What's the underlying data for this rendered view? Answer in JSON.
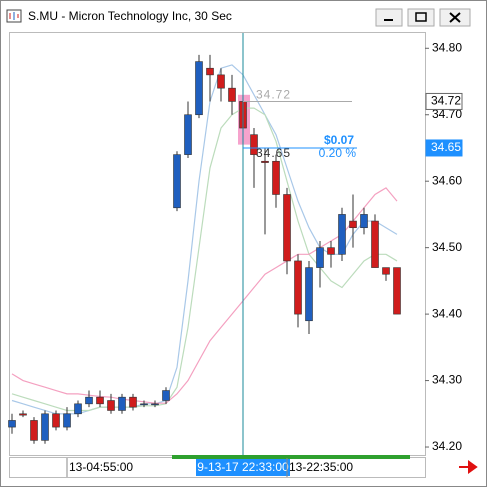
{
  "window_title": "S.MU - Micron Technology Inc, 30 Sec",
  "chart_data": {
    "type": "candlestick",
    "categories": [
      null,
      null,
      null,
      null,
      null,
      "13-04:55:00",
      null,
      null,
      null,
      null,
      null,
      null,
      null,
      null,
      null,
      null,
      null,
      null,
      null,
      null,
      null,
      "9-13-17 22:33:00",
      null,
      null,
      null,
      "13-22:35:00",
      null,
      null,
      null,
      null,
      null,
      null,
      null,
      null,
      null,
      null
    ],
    "open": [
      34.23,
      34.25,
      34.24,
      34.21,
      34.25,
      34.23,
      34.25,
      34.265,
      34.275,
      34.27,
      34.255,
      34.275,
      34.265,
      34.265,
      34.27,
      34.56,
      34.64,
      34.7,
      34.77,
      34.76,
      34.74,
      34.72,
      34.67,
      34.63,
      34.63,
      34.58,
      34.48,
      34.39,
      34.47,
      34.5,
      34.49,
      34.54,
      34.53,
      34.54,
      34.47,
      34.47
    ],
    "high": [
      34.25,
      34.255,
      34.245,
      34.255,
      34.255,
      34.26,
      34.27,
      34.285,
      34.285,
      34.28,
      34.28,
      34.28,
      34.27,
      34.27,
      34.29,
      34.645,
      34.72,
      34.79,
      34.79,
      34.77,
      34.76,
      34.73,
      34.68,
      34.65,
      34.64,
      34.59,
      34.49,
      34.48,
      34.51,
      34.51,
      34.56,
      34.58,
      34.56,
      34.55,
      34.47,
      34.47
    ],
    "low": [
      34.22,
      34.245,
      34.205,
      34.205,
      34.225,
      34.225,
      34.245,
      34.26,
      34.26,
      34.25,
      34.25,
      34.255,
      34.26,
      34.26,
      34.265,
      34.555,
      34.635,
      34.695,
      34.72,
      34.72,
      34.7,
      34.64,
      34.59,
      34.52,
      34.56,
      34.46,
      34.38,
      34.37,
      34.44,
      34.47,
      34.48,
      34.5,
      34.52,
      34.47,
      34.45,
      34.4
    ],
    "close": [
      34.24,
      34.248,
      34.21,
      34.25,
      34.23,
      34.25,
      34.265,
      34.275,
      34.265,
      34.255,
      34.275,
      34.26,
      34.265,
      34.265,
      34.285,
      34.64,
      34.7,
      34.78,
      34.76,
      34.74,
      34.72,
      34.68,
      34.64,
      34.628,
      34.58,
      34.48,
      34.4,
      34.47,
      34.5,
      34.49,
      34.55,
      34.53,
      34.55,
      34.47,
      34.46,
      34.4
    ],
    "up_color": "#1f5fbf",
    "down_color": "#d01c1c",
    "moving_averages": [
      {
        "color": "#a9c8e8",
        "values": [
          34.27,
          34.265,
          34.26,
          34.255,
          34.25,
          34.25,
          34.25,
          34.255,
          34.26,
          34.26,
          34.26,
          34.26,
          34.265,
          34.265,
          34.27,
          34.32,
          34.45,
          34.6,
          34.72,
          34.77,
          34.775,
          34.76,
          34.73,
          34.7,
          34.67,
          34.62,
          34.57,
          34.53,
          34.5,
          34.49,
          34.49,
          34.52,
          34.54,
          34.54,
          34.53,
          34.52
        ]
      },
      {
        "color": "#bcdcbc",
        "values": [
          34.28,
          34.275,
          34.27,
          34.265,
          34.26,
          34.255,
          34.255,
          34.255,
          34.26,
          34.26,
          34.26,
          34.26,
          34.262,
          34.262,
          34.265,
          34.29,
          34.38,
          34.5,
          34.62,
          34.68,
          34.7,
          34.71,
          34.71,
          34.7,
          34.66,
          34.6,
          34.54,
          34.49,
          34.47,
          34.45,
          34.44,
          34.46,
          34.48,
          34.49,
          34.49,
          34.48
        ]
      },
      {
        "color": "#f4a0c0",
        "values": [
          34.31,
          34.3,
          34.295,
          34.29,
          34.285,
          34.28,
          34.28,
          34.278,
          34.276,
          34.275,
          34.272,
          34.27,
          34.268,
          34.266,
          34.266,
          34.28,
          34.3,
          34.33,
          34.36,
          34.38,
          34.4,
          34.42,
          34.44,
          34.46,
          34.47,
          34.48,
          34.49,
          34.49,
          34.5,
          34.51,
          34.52,
          34.54,
          34.56,
          34.58,
          34.59,
          34.57
        ]
      }
    ],
    "ylim": [
      34.188,
      34.823
    ],
    "yticks": [
      {
        "value": 34.2,
        "label": "34.20"
      },
      {
        "value": 34.3,
        "label": "34.30"
      },
      {
        "value": 34.4,
        "label": "34.40"
      },
      {
        "value": 34.5,
        "label": "34.50"
      },
      {
        "value": 34.6,
        "label": "34.60"
      },
      {
        "value": 34.7,
        "label": "34.70"
      },
      {
        "value": 34.8,
        "label": "34.80"
      }
    ],
    "crosshair_category": 21,
    "levels": [
      {
        "value": 34.72,
        "label": "34.72",
        "color": "#aaaaaa"
      },
      {
        "value": 34.65,
        "label": "34.65",
        "color": "#1e90ff"
      }
    ],
    "measure": {
      "change": "$0.07",
      "percent": "0.20 %",
      "color": "#1e90ff"
    }
  }
}
